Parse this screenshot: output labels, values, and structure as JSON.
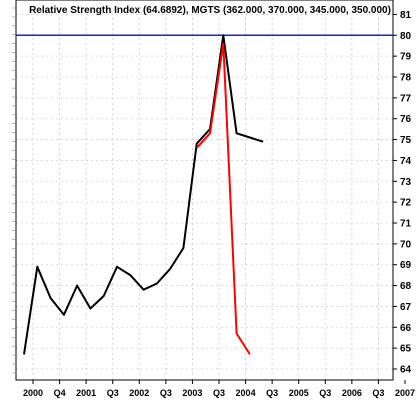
{
  "chart_data": {
    "type": "line",
    "title": "Relative Strength Index (64.6892), MGTS (362.000, 370.000, 345.000, 350.000)",
    "xlabel": "",
    "ylabel": "",
    "x_tick_labels": [
      "2000",
      "Q4",
      "2001",
      "Q3",
      "2002",
      "Q3",
      "2003",
      "Q3",
      "2004",
      "Q3",
      "2005",
      "Q3",
      "2006",
      "Q3",
      "2007"
    ],
    "x": [
      "2000-01",
      "2000-04",
      "2000-07",
      "2000-10",
      "2001-01",
      "2001-04",
      "2001-07",
      "2001-10",
      "2002-01",
      "2002-04",
      "2002-07",
      "2002-10",
      "2003-01",
      "2003-04",
      "2003-07",
      "2003-10",
      "2004-01",
      "2004-04",
      "2004-07",
      "2004-10"
    ],
    "y_right_ticks": [
      64,
      65,
      66,
      67,
      68,
      69,
      70,
      71,
      72,
      73,
      74,
      75,
      76,
      77,
      78,
      79,
      80,
      81
    ],
    "ylim": [
      64,
      81.5
    ],
    "reference_line": 80,
    "series": [
      {
        "color": "#000000",
        "values": [
          64.7,
          68.9,
          67.4,
          66.6,
          68.0,
          66.9,
          67.5,
          68.9,
          68.5,
          67.8,
          68.1,
          68.8,
          69.8,
          74.8,
          75.5,
          80.0,
          75.3,
          75.1,
          74.9,
          null
        ]
      },
      {
        "color": "#ff0000",
        "values": [
          null,
          null,
          null,
          null,
          null,
          null,
          null,
          null,
          null,
          null,
          null,
          null,
          null,
          74.6,
          75.3,
          79.6,
          65.7,
          64.7,
          null,
          null
        ]
      }
    ],
    "grid": true,
    "legend": "none",
    "reference_color": "#1a23c8"
  }
}
